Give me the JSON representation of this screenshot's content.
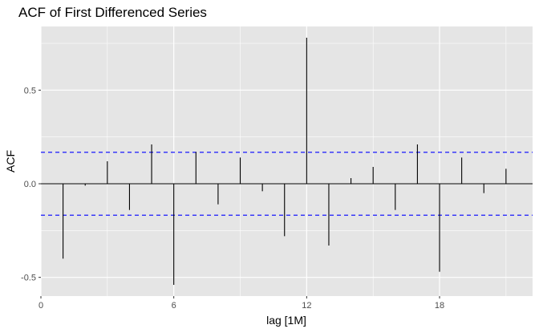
{
  "chart_data": {
    "type": "bar",
    "subtype": "acf-spikes",
    "title": "ACF of First Differenced Series",
    "xlabel": "lag [1M]",
    "ylabel": "ACF",
    "x": [
      1,
      2,
      3,
      4,
      5,
      6,
      7,
      8,
      9,
      10,
      11,
      12,
      13,
      14,
      15,
      16,
      17,
      18,
      19,
      20,
      21
    ],
    "values": [
      -0.4,
      -0.01,
      0.12,
      -0.14,
      0.21,
      -0.54,
      0.17,
      -0.11,
      0.14,
      -0.04,
      -0.28,
      0.78,
      -0.33,
      0.03,
      0.09,
      -0.14,
      0.21,
      -0.47,
      0.14,
      -0.05,
      0.08
    ],
    "confidence_bounds": [
      0.168,
      -0.168
    ],
    "xlim": [
      0,
      22.2
    ],
    "ylim": [
      -0.6,
      0.84
    ],
    "x_ticks": [
      0,
      6,
      12,
      18
    ],
    "x_tick_labels": [
      "0",
      "6",
      "12",
      "18"
    ],
    "x_minor_ticks": [
      3,
      9,
      15,
      21
    ],
    "y_ticks": [
      -0.5,
      0.0,
      0.5
    ],
    "y_tick_labels": [
      "-0.5",
      "0.0",
      "0.5"
    ],
    "y_minor_ticks": [
      -0.25,
      0.25,
      0.75
    ],
    "grid": true,
    "colors": {
      "panel_background": "#e5e5e5",
      "grid_line": "#ffffff",
      "spike": "#000000",
      "zero_line": "#000000",
      "confidence_line": "#0000ff"
    }
  }
}
